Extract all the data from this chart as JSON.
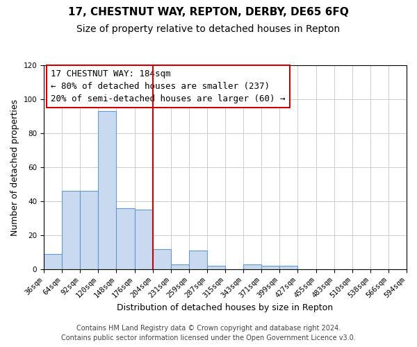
{
  "title": "17, CHESTNUT WAY, REPTON, DERBY, DE65 6FQ",
  "subtitle": "Size of property relative to detached houses in Repton",
  "xlabel": "Distribution of detached houses by size in Repton",
  "ylabel": "Number of detached properties",
  "bar_values": [
    9,
    46,
    46,
    93,
    36,
    35,
    12,
    3,
    11,
    2,
    0,
    3,
    2,
    2,
    0,
    0,
    0,
    0,
    0,
    0
  ],
  "bin_labels": [
    "36sqm",
    "64sqm",
    "92sqm",
    "120sqm",
    "148sqm",
    "176sqm",
    "204sqm",
    "231sqm",
    "259sqm",
    "287sqm",
    "315sqm",
    "343sqm",
    "371sqm",
    "399sqm",
    "427sqm",
    "455sqm",
    "483sqm",
    "510sqm",
    "538sqm",
    "566sqm",
    "594sqm"
  ],
  "bar_color": "#c8d9f0",
  "bar_edge_color": "#6699cc",
  "vline_x": 6,
  "vline_color": "#cc0000",
  "vline_linewidth": 1.5,
  "annotation_box_text": "17 CHESTNUT WAY: 184sqm\n← 80% of detached houses are smaller (237)\n20% of semi-detached houses are larger (60) →",
  "annotation_box_color": "#cc0000",
  "annotation_box_bg": "#ffffff",
  "ylim": [
    0,
    120
  ],
  "yticks": [
    0,
    20,
    40,
    60,
    80,
    100,
    120
  ],
  "grid_color": "#cccccc",
  "footer_line1": "Contains HM Land Registry data © Crown copyright and database right 2024.",
  "footer_line2": "Contains public sector information licensed under the Open Government Licence v3.0.",
  "bg_color": "#ffffff",
  "title_fontsize": 11,
  "subtitle_fontsize": 10,
  "axis_label_fontsize": 9,
  "tick_fontsize": 7.5,
  "annotation_fontsize": 9,
  "footer_fontsize": 7
}
